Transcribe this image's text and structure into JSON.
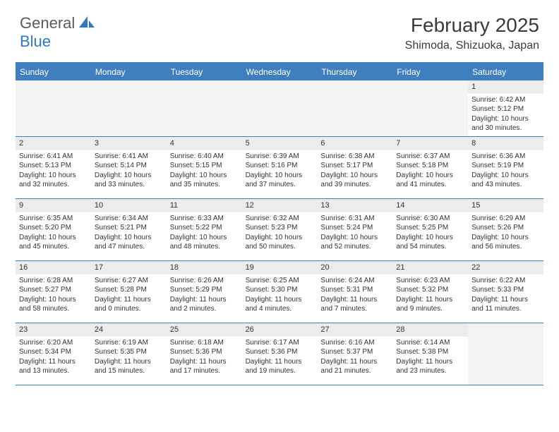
{
  "header": {
    "logo_general": "General",
    "logo_blue": "Blue",
    "month_title": "February 2025",
    "location": "Shimoda, Shizuoka, Japan"
  },
  "colors": {
    "header_bar": "#3f7fbf",
    "daynum_bg": "#ececec",
    "empty_bg": "#f3f3f3",
    "text": "#333333",
    "logo_gray": "#5a5a5a",
    "logo_blue": "#2f78c3"
  },
  "weekdays": [
    "Sunday",
    "Monday",
    "Tuesday",
    "Wednesday",
    "Thursday",
    "Friday",
    "Saturday"
  ],
  "layout": {
    "first_weekday_index": 6,
    "days_in_month": 28,
    "columns": 7,
    "rows": 5
  },
  "days": [
    {
      "n": 1,
      "sunrise": "6:42 AM",
      "sunset": "5:12 PM",
      "daylight": "10 hours and 30 minutes."
    },
    {
      "n": 2,
      "sunrise": "6:41 AM",
      "sunset": "5:13 PM",
      "daylight": "10 hours and 32 minutes."
    },
    {
      "n": 3,
      "sunrise": "6:41 AM",
      "sunset": "5:14 PM",
      "daylight": "10 hours and 33 minutes."
    },
    {
      "n": 4,
      "sunrise": "6:40 AM",
      "sunset": "5:15 PM",
      "daylight": "10 hours and 35 minutes."
    },
    {
      "n": 5,
      "sunrise": "6:39 AM",
      "sunset": "5:16 PM",
      "daylight": "10 hours and 37 minutes."
    },
    {
      "n": 6,
      "sunrise": "6:38 AM",
      "sunset": "5:17 PM",
      "daylight": "10 hours and 39 minutes."
    },
    {
      "n": 7,
      "sunrise": "6:37 AM",
      "sunset": "5:18 PM",
      "daylight": "10 hours and 41 minutes."
    },
    {
      "n": 8,
      "sunrise": "6:36 AM",
      "sunset": "5:19 PM",
      "daylight": "10 hours and 43 minutes."
    },
    {
      "n": 9,
      "sunrise": "6:35 AM",
      "sunset": "5:20 PM",
      "daylight": "10 hours and 45 minutes."
    },
    {
      "n": 10,
      "sunrise": "6:34 AM",
      "sunset": "5:21 PM",
      "daylight": "10 hours and 47 minutes."
    },
    {
      "n": 11,
      "sunrise": "6:33 AM",
      "sunset": "5:22 PM",
      "daylight": "10 hours and 48 minutes."
    },
    {
      "n": 12,
      "sunrise": "6:32 AM",
      "sunset": "5:23 PM",
      "daylight": "10 hours and 50 minutes."
    },
    {
      "n": 13,
      "sunrise": "6:31 AM",
      "sunset": "5:24 PM",
      "daylight": "10 hours and 52 minutes."
    },
    {
      "n": 14,
      "sunrise": "6:30 AM",
      "sunset": "5:25 PM",
      "daylight": "10 hours and 54 minutes."
    },
    {
      "n": 15,
      "sunrise": "6:29 AM",
      "sunset": "5:26 PM",
      "daylight": "10 hours and 56 minutes."
    },
    {
      "n": 16,
      "sunrise": "6:28 AM",
      "sunset": "5:27 PM",
      "daylight": "10 hours and 58 minutes."
    },
    {
      "n": 17,
      "sunrise": "6:27 AM",
      "sunset": "5:28 PM",
      "daylight": "11 hours and 0 minutes."
    },
    {
      "n": 18,
      "sunrise": "6:26 AM",
      "sunset": "5:29 PM",
      "daylight": "11 hours and 2 minutes."
    },
    {
      "n": 19,
      "sunrise": "6:25 AM",
      "sunset": "5:30 PM",
      "daylight": "11 hours and 4 minutes."
    },
    {
      "n": 20,
      "sunrise": "6:24 AM",
      "sunset": "5:31 PM",
      "daylight": "11 hours and 7 minutes."
    },
    {
      "n": 21,
      "sunrise": "6:23 AM",
      "sunset": "5:32 PM",
      "daylight": "11 hours and 9 minutes."
    },
    {
      "n": 22,
      "sunrise": "6:22 AM",
      "sunset": "5:33 PM",
      "daylight": "11 hours and 11 minutes."
    },
    {
      "n": 23,
      "sunrise": "6:20 AM",
      "sunset": "5:34 PM",
      "daylight": "11 hours and 13 minutes."
    },
    {
      "n": 24,
      "sunrise": "6:19 AM",
      "sunset": "5:35 PM",
      "daylight": "11 hours and 15 minutes."
    },
    {
      "n": 25,
      "sunrise": "6:18 AM",
      "sunset": "5:36 PM",
      "daylight": "11 hours and 17 minutes."
    },
    {
      "n": 26,
      "sunrise": "6:17 AM",
      "sunset": "5:36 PM",
      "daylight": "11 hours and 19 minutes."
    },
    {
      "n": 27,
      "sunrise": "6:16 AM",
      "sunset": "5:37 PM",
      "daylight": "11 hours and 21 minutes."
    },
    {
      "n": 28,
      "sunrise": "6:14 AM",
      "sunset": "5:38 PM",
      "daylight": "11 hours and 23 minutes."
    }
  ],
  "labels": {
    "sunrise_prefix": "Sunrise: ",
    "sunset_prefix": "Sunset: ",
    "daylight_prefix": "Daylight: "
  }
}
